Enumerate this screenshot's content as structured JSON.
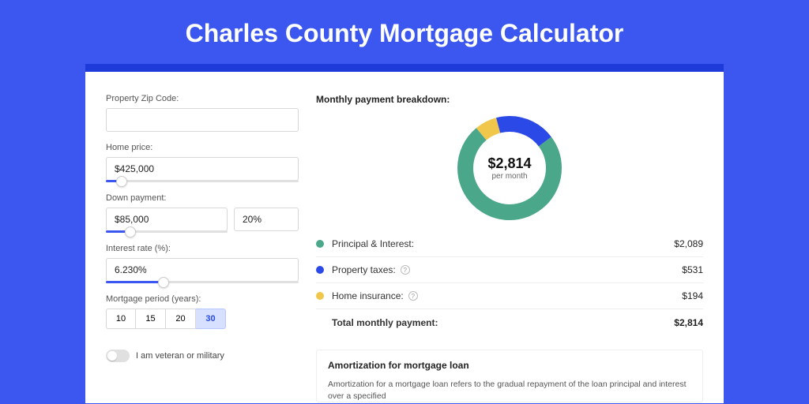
{
  "page": {
    "title": "Charles County Mortgage Calculator",
    "bg_color": "#3b57f0",
    "shadow_color": "#1e3bd9",
    "card_bg": "#ffffff"
  },
  "form": {
    "zip": {
      "label": "Property Zip Code:",
      "value": ""
    },
    "home_price": {
      "label": "Home price:",
      "value": "$425,000",
      "slider_pct": 8
    },
    "down_payment": {
      "label": "Down payment:",
      "amount": "$85,000",
      "percent": "20%",
      "slider_pct": 20
    },
    "rate": {
      "label": "Interest rate (%):",
      "value": "6.230%",
      "slider_pct": 30
    },
    "period": {
      "label": "Mortgage period (years):",
      "options": [
        "10",
        "15",
        "20",
        "30"
      ],
      "selected": "30"
    },
    "veteran": {
      "label": "I am veteran or military",
      "checked": false
    }
  },
  "breakdown": {
    "title": "Monthly payment breakdown:",
    "center_amount": "$2,814",
    "center_sub": "per month",
    "items": [
      {
        "label": "Principal & Interest:",
        "value": "$2,089",
        "amount": 2089,
        "color": "#4aa789",
        "info": false
      },
      {
        "label": "Property taxes:",
        "value": "$531",
        "amount": 531,
        "color": "#2b49e6",
        "info": true
      },
      {
        "label": "Home insurance:",
        "value": "$194",
        "amount": 194,
        "color": "#f0c74a",
        "info": true
      }
    ],
    "total_label": "Total monthly payment:",
    "total_value": "$2,814",
    "chart": {
      "type": "donut",
      "size": 132,
      "ring_thickness": 20,
      "start_angle_deg": -40,
      "segments": [
        {
          "fraction": 0.069,
          "color": "#f0c74a"
        },
        {
          "fraction": 0.189,
          "color": "#2b49e6"
        },
        {
          "fraction": 0.742,
          "color": "#4aa789"
        }
      ]
    }
  },
  "amort": {
    "title": "Amortization for mortgage loan",
    "text": "Amortization for a mortgage loan refers to the gradual repayment of the loan principal and interest over a specified"
  }
}
